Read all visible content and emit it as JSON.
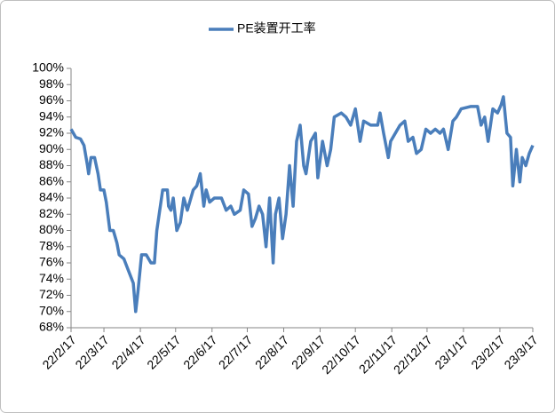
{
  "chart_data": {
    "type": "line",
    "x": [
      "22/2/17",
      "22/2/21",
      "22/2/25",
      "22/2/28",
      "22/3/3",
      "22/3/4",
      "22/3/6",
      "22/3/9",
      "22/3/12",
      "22/3/14",
      "22/3/17",
      "22/3/19",
      "22/3/22",
      "22/3/25",
      "22/3/28",
      "22/3/30",
      "22/4/3",
      "22/4/7",
      "22/4/11",
      "22/4/13",
      "22/4/15",
      "22/4/18",
      "22/4/22",
      "22/4/26",
      "22/4/29",
      "22/5/1",
      "22/5/6",
      "22/5/10",
      "22/5/11",
      "22/5/13",
      "22/5/15",
      "22/5/18",
      "22/5/21",
      "22/5/24",
      "22/5/27",
      "22/6/1",
      "22/6/4",
      "22/6/7",
      "22/6/10",
      "22/6/12",
      "22/6/15",
      "22/6/19",
      "22/6/25",
      "22/6/29",
      "22/7/3",
      "22/7/6",
      "22/7/11",
      "22/7/14",
      "22/7/18",
      "22/7/21",
      "22/7/24",
      "22/7/27",
      "22/7/30",
      "22/8/2",
      "22/8/5",
      "22/8/8",
      "22/8/10",
      "22/8/13",
      "22/8/16",
      "22/8/19",
      "22/8/22",
      "22/8/25",
      "22/8/28",
      "22/8/31",
      "22/9/3",
      "22/9/5",
      "22/9/9",
      "22/9/13",
      "22/9/15",
      "22/9/19",
      "22/9/23",
      "22/9/26",
      "22/9/29",
      "22/10/5",
      "22/10/9",
      "22/10/13",
      "22/10/17",
      "22/10/21",
      "22/10/24",
      "22/10/30",
      "22/11/5",
      "22/11/7",
      "22/11/10",
      "22/11/14",
      "22/11/16",
      "22/11/20",
      "22/11/24",
      "22/11/28",
      "22/12/1",
      "22/12/5",
      "22/12/8",
      "22/12/12",
      "22/12/16",
      "22/12/20",
      "22/12/24",
      "22/12/28",
      "22/12/31",
      "23/1/4",
      "23/1/8",
      "23/1/11",
      "23/1/15",
      "23/1/23",
      "23/1/29",
      "23/2/1",
      "23/2/4",
      "23/2/7",
      "23/2/11",
      "23/2/15",
      "23/2/18",
      "23/2/20",
      "23/2/23",
      "23/2/26",
      "23/2/28",
      "23/3/3",
      "23/3/6",
      "23/3/8",
      "23/3/11",
      "23/3/14",
      "23/3/17"
    ],
    "series": [
      {
        "name": "PE装置开工率",
        "color": "#4a7ebb",
        "values": [
          92.5,
          91.5,
          91.3,
          90.5,
          88,
          87,
          89,
          89,
          87,
          85,
          85,
          83.5,
          80,
          80,
          78.5,
          77,
          76.5,
          75,
          73.5,
          70,
          72.5,
          77,
          77,
          76,
          76,
          80,
          85,
          85,
          83,
          82.5,
          84,
          80,
          81,
          84,
          82.5,
          85,
          85.5,
          87,
          83,
          85,
          83.5,
          84,
          84,
          82.5,
          83,
          82,
          82.5,
          85,
          84.5,
          80.5,
          81.5,
          83,
          82,
          78,
          84,
          76,
          82,
          84,
          79,
          82,
          88,
          83,
          91,
          93,
          88,
          87,
          91,
          92,
          86.5,
          91,
          88,
          90,
          94,
          94.5,
          94,
          93,
          95,
          91,
          93.5,
          93,
          93,
          94.5,
          92,
          89,
          91,
          92,
          93,
          93.5,
          91,
          91.5,
          89.5,
          90,
          92.5,
          92,
          92.5,
          92,
          92.5,
          90,
          93.5,
          94,
          95,
          95.3,
          95.3,
          93,
          94,
          91,
          95,
          94.5,
          95.5,
          96.5,
          92,
          91.5,
          85.5,
          90,
          86,
          89,
          88,
          89.5,
          90.5
        ]
      }
    ],
    "xlim": [
      "22/2/17",
      "23/3/17"
    ],
    "xticks": [
      "22/2/17",
      "22/3/17",
      "22/4/17",
      "22/5/17",
      "22/6/17",
      "22/7/17",
      "22/8/17",
      "22/9/17",
      "22/10/17",
      "22/11/17",
      "22/12/17",
      "23/1/17",
      "23/2/17",
      "23/3/17"
    ],
    "ylim": [
      68,
      100
    ],
    "yticks": [
      {
        "value": 68,
        "label": "68%"
      },
      {
        "value": 70,
        "label": "70%"
      },
      {
        "value": 72,
        "label": "72%"
      },
      {
        "value": 74,
        "label": "74%"
      },
      {
        "value": 76,
        "label": "76%"
      },
      {
        "value": 78,
        "label": "78%"
      },
      {
        "value": 80,
        "label": "80%"
      },
      {
        "value": 82,
        "label": "82%"
      },
      {
        "value": 84,
        "label": "84%"
      },
      {
        "value": 86,
        "label": "86%"
      },
      {
        "value": 88,
        "label": "88%"
      },
      {
        "value": 90,
        "label": "90%"
      },
      {
        "value": 92,
        "label": "92%"
      },
      {
        "value": 94,
        "label": "94%"
      },
      {
        "value": 96,
        "label": "96%"
      },
      {
        "value": 98,
        "label": "98%"
      },
      {
        "value": 100,
        "label": "100%"
      }
    ],
    "grid": false,
    "legend": "top"
  }
}
